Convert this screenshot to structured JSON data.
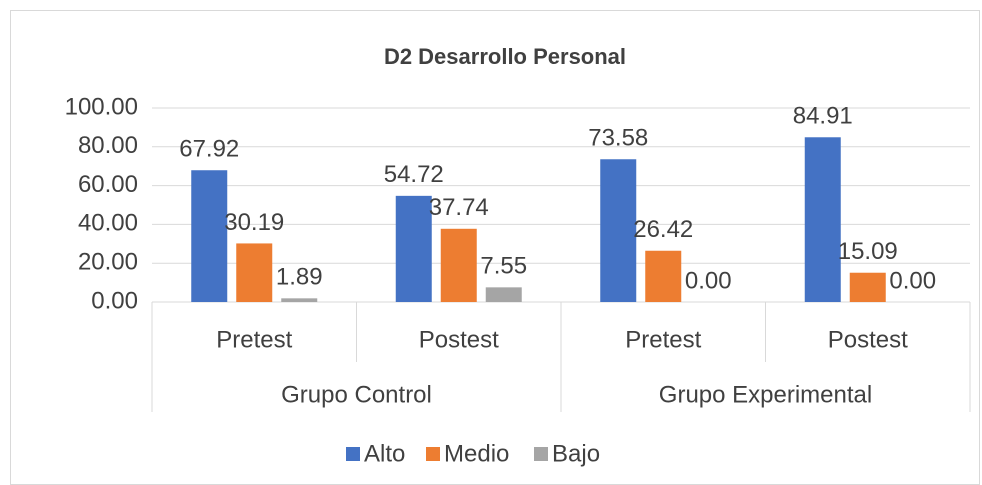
{
  "chart_data": {
    "type": "bar",
    "title": "D2 Desarrollo Personal",
    "categories": [
      "Pretest",
      "Postest",
      "Pretest",
      "Postest"
    ],
    "groups": [
      "Grupo Control",
      "Grupo Experimental"
    ],
    "series": [
      {
        "name": "Alto",
        "color": "#4472c4",
        "values": [
          67.92,
          54.72,
          73.58,
          84.91
        ],
        "value_labels": [
          "67.92",
          "54.72",
          "73.58",
          "84.91"
        ]
      },
      {
        "name": "Medio",
        "color": "#ed7d31",
        "values": [
          30.19,
          37.74,
          26.42,
          15.09
        ],
        "value_labels": [
          "30.19",
          "37.74",
          "26.42",
          "15.09"
        ]
      },
      {
        "name": "Bajo",
        "color": "#a5a5a5",
        "values": [
          1.89,
          7.55,
          0,
          0
        ],
        "value_labels": [
          "1.89",
          "7.55",
          "0.00",
          "0.00"
        ]
      }
    ],
    "ylim": [
      0,
      100
    ],
    "yticks": [
      {
        "value": 0,
        "label": "0.00"
      },
      {
        "value": 20,
        "label": "20.00"
      },
      {
        "value": 40,
        "label": "40.00"
      },
      {
        "value": 60,
        "label": "60.00"
      },
      {
        "value": 80,
        "label": "80.00"
      },
      {
        "value": 100,
        "label": "100.00"
      }
    ],
    "grid": true,
    "legend": "bottom"
  }
}
